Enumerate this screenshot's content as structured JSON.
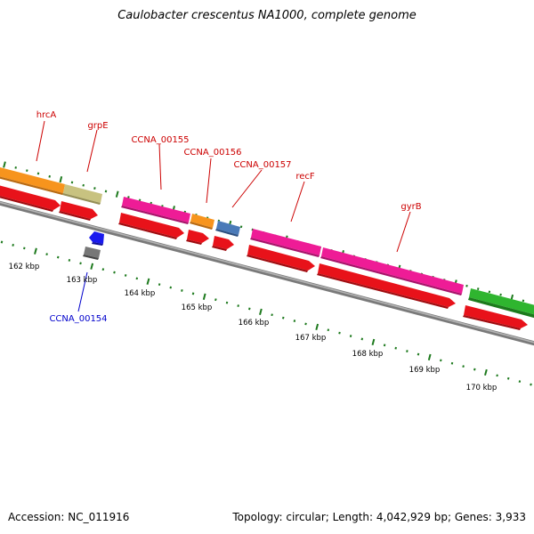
{
  "title": "Caulobacter crescentus NA1000, complete genome",
  "footer": {
    "accession": "Accession: NC_011916",
    "summary": "Topology: circular; Length: 4,042,929 bp; Genes: 3,933"
  },
  "colors": {
    "backbone": "#8a8a8a",
    "cds": "#e8121a",
    "label_plus": "#cc0000",
    "label_minus": "#0000cc",
    "tick": "#1e7a1e",
    "ruler_text": "#000000"
  },
  "ruler_labels": [
    "162 kbp",
    "163 kbp",
    "164 kbp",
    "165 kbp",
    "166 kbp",
    "167 kbp",
    "168 kbp",
    "169 kbp",
    "170 kbp"
  ],
  "features": [
    {
      "name": "hrcA",
      "color": "#f7941d",
      "cds_color": "#e8121a"
    },
    {
      "name": "grpE",
      "color": "#c8c280",
      "cds_color": "#e8121a"
    },
    {
      "name": "CCNA_00155",
      "color": "#ee1c96",
      "cds_color": "#e8121a"
    },
    {
      "name": "CCNA_00156",
      "color": "#f7941d",
      "cds_color": "#e8121a"
    },
    {
      "name": "CCNA_00157",
      "color": "#4a7ab8",
      "cds_color": "#e8121a"
    },
    {
      "name": "recF",
      "color": "#ee1c96",
      "cds_color": "#e8121a"
    },
    {
      "name": "gyrB",
      "color": "#ee1c96",
      "cds_color": "#e8121a"
    },
    {
      "name": "",
      "color": "#2fb52f",
      "cds_color": "#e8121a"
    },
    {
      "name": "CCNA_00154",
      "color": "#1a1aee",
      "cds_color": "#777777"
    }
  ]
}
